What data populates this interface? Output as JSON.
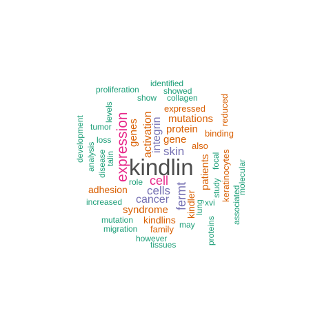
{
  "colors": {
    "top": "#4d4d4d",
    "magenta": "#e7298a",
    "purple": "#7570b3",
    "orange": "#d95f02",
    "green": "#1b9e77"
  },
  "words": {
    "kindlin": "kindlin",
    "expression": "expression",
    "cell": "cell",
    "cells": "cells",
    "cancer": "cancer",
    "fermt": "fermt",
    "skin": "skin",
    "integrin": "integrin",
    "activation": "activation",
    "mutations": "mutations",
    "gene": "gene",
    "protein": "protein",
    "genes": "genes",
    "patients": "patients",
    "syndrome": "syndrome",
    "adhesion": "adhesion",
    "kindlins": "kindlins",
    "kindler": "kindler",
    "family": "family",
    "expressed": "expressed",
    "binding": "binding",
    "also": "also",
    "reduced": "reduced",
    "keratinocytes": "keratinocytes",
    "role": "role",
    "identified": "identified",
    "showed": "showed",
    "proliferation": "proliferation",
    "show": "show",
    "collagen": "collagen",
    "levels": "levels",
    "tumor": "tumor",
    "development": "development",
    "loss": "loss",
    "analysis": "analysis",
    "disease": "disease",
    "talin": "talin",
    "focal": "focal",
    "study": "study",
    "molecular": "molecular",
    "associated": "associated",
    "increased": "increased",
    "lung": "lung",
    "xvi": "xvi",
    "may": "may",
    "proteins": "proteins",
    "mutation": "mutation",
    "migration": "migration",
    "however": "however",
    "tissues": "tissues"
  }
}
